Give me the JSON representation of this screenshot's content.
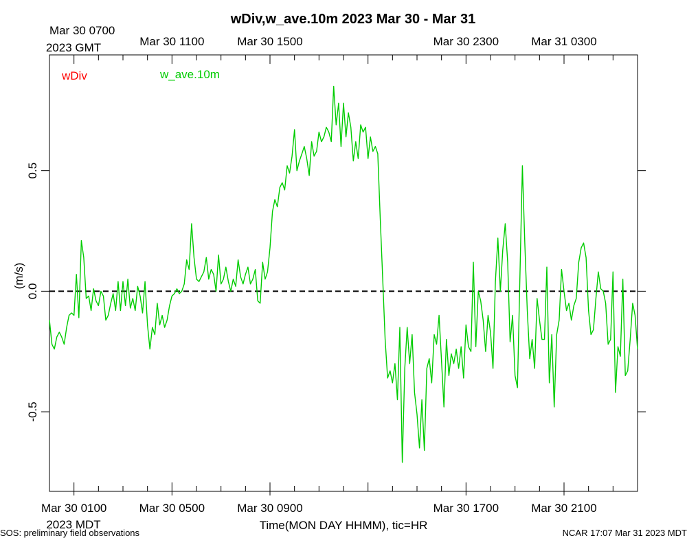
{
  "chart_data": {
    "type": "line",
    "title": "wDiv,w_ave.10m 2023 Mar 30 - Mar 31",
    "xlabel": "Time(MON DAY HHMM), tic=HR",
    "ylabel": "(m/s)",
    "x_range_hours_mdt": [
      0,
      24
    ],
    "ylim": [
      -0.83,
      0.98
    ],
    "y_ticks": [
      -0.5,
      0.0,
      0.5
    ],
    "y_tick_labels": [
      "-0.5",
      "0.0",
      "0.5"
    ],
    "bottom_ticks": [
      {
        "label": "Mar 30 0100",
        "hour": 1
      },
      {
        "label": "Mar 30 0500",
        "hour": 5
      },
      {
        "label": "Mar 30 0900",
        "hour": 9
      },
      {
        "label": "Mar 30 1700",
        "hour": 17
      },
      {
        "label": "Mar 30 2100",
        "hour": 21
      }
    ],
    "top_ticks": [
      {
        "label": "Mar 30 0700",
        "hour": 1
      },
      {
        "label": "Mar 30 1100",
        "hour": 5
      },
      {
        "label": "Mar 30 1500",
        "hour": 9
      },
      {
        "label": "Mar 30 2300",
        "hour": 17
      },
      {
        "label": "Mar 31 0300",
        "hour": 21
      }
    ],
    "bottom_zone": "2023 MDT",
    "top_zone": "2023 GMT",
    "reference_line": {
      "y": 0.0,
      "style": "dashed"
    },
    "legend": [
      {
        "name": "wDiv",
        "color": "#ff0000"
      },
      {
        "name": "w_ave.10m",
        "color": "#00cc00"
      }
    ],
    "series": [
      {
        "name": "w_ave.10m",
        "color": "#00cc00",
        "points": [
          [
            0.0,
            -0.12
          ],
          [
            0.1,
            -0.22
          ],
          [
            0.2,
            -0.24
          ],
          [
            0.3,
            -0.19
          ],
          [
            0.4,
            -0.17
          ],
          [
            0.5,
            -0.19
          ],
          [
            0.6,
            -0.22
          ],
          [
            0.7,
            -0.15
          ],
          [
            0.8,
            -0.1
          ],
          [
            0.9,
            -0.09
          ],
          [
            1.0,
            -0.1
          ],
          [
            1.1,
            0.07
          ],
          [
            1.2,
            -0.11
          ],
          [
            1.3,
            0.21
          ],
          [
            1.4,
            0.14
          ],
          [
            1.5,
            -0.03
          ],
          [
            1.6,
            -0.02
          ],
          [
            1.7,
            -0.08
          ],
          [
            1.8,
            0.01
          ],
          [
            1.9,
            -0.04
          ],
          [
            2.0,
            -0.06
          ],
          [
            2.1,
            0.0
          ],
          [
            2.2,
            -0.02
          ],
          [
            2.3,
            -0.12
          ],
          [
            2.4,
            -0.1
          ],
          [
            2.5,
            -0.05
          ],
          [
            2.6,
            -0.01
          ],
          [
            2.7,
            -0.08
          ],
          [
            2.8,
            0.04
          ],
          [
            2.9,
            -0.08
          ],
          [
            3.0,
            0.04
          ],
          [
            3.1,
            -0.06
          ],
          [
            3.2,
            0.05
          ],
          [
            3.3,
            -0.07
          ],
          [
            3.4,
            -0.03
          ],
          [
            3.5,
            -0.08
          ],
          [
            3.6,
            0.02
          ],
          [
            3.7,
            -0.02
          ],
          [
            3.8,
            -0.09
          ],
          [
            3.9,
            0.04
          ],
          [
            4.0,
            -0.14
          ],
          [
            4.1,
            -0.24
          ],
          [
            4.2,
            -0.15
          ],
          [
            4.3,
            -0.18
          ],
          [
            4.4,
            -0.05
          ],
          [
            4.5,
            -0.14
          ],
          [
            4.6,
            -0.1
          ],
          [
            4.7,
            -0.15
          ],
          [
            4.8,
            -0.12
          ],
          [
            4.9,
            -0.06
          ],
          [
            5.0,
            -0.02
          ],
          [
            5.1,
            -0.01
          ],
          [
            5.2,
            0.01
          ],
          [
            5.3,
            -0.01
          ],
          [
            5.4,
            0.0
          ],
          [
            5.5,
            0.03
          ],
          [
            5.6,
            0.13
          ],
          [
            5.7,
            0.09
          ],
          [
            5.8,
            0.28
          ],
          [
            5.9,
            0.14
          ],
          [
            6.0,
            0.05
          ],
          [
            6.1,
            0.04
          ],
          [
            6.2,
            0.06
          ],
          [
            6.3,
            0.08
          ],
          [
            6.4,
            0.14
          ],
          [
            6.5,
            0.05
          ],
          [
            6.6,
            0.09
          ],
          [
            6.7,
            0.07
          ],
          [
            6.8,
            0.0
          ],
          [
            6.9,
            0.15
          ],
          [
            7.0,
            0.03
          ],
          [
            7.1,
            0.05
          ],
          [
            7.2,
            0.1
          ],
          [
            7.3,
            0.04
          ],
          [
            7.4,
            0.0
          ],
          [
            7.5,
            0.05
          ],
          [
            7.6,
            0.02
          ],
          [
            7.7,
            0.13
          ],
          [
            7.8,
            0.06
          ],
          [
            7.9,
            0.03
          ],
          [
            8.0,
            0.07
          ],
          [
            8.1,
            0.1
          ],
          [
            8.2,
            0.03
          ],
          [
            8.3,
            0.05
          ],
          [
            8.4,
            0.09
          ],
          [
            8.5,
            -0.04
          ],
          [
            8.6,
            -0.05
          ],
          [
            8.7,
            0.12
          ],
          [
            8.8,
            0.05
          ],
          [
            8.9,
            0.08
          ],
          [
            9.0,
            0.18
          ],
          [
            9.1,
            0.33
          ],
          [
            9.2,
            0.38
          ],
          [
            9.3,
            0.35
          ],
          [
            9.4,
            0.43
          ],
          [
            9.5,
            0.45
          ],
          [
            9.6,
            0.42
          ],
          [
            9.7,
            0.52
          ],
          [
            9.8,
            0.49
          ],
          [
            9.9,
            0.56
          ],
          [
            10.0,
            0.67
          ],
          [
            10.1,
            0.5
          ],
          [
            10.2,
            0.54
          ],
          [
            10.3,
            0.57
          ],
          [
            10.4,
            0.6
          ],
          [
            10.5,
            0.55
          ],
          [
            10.6,
            0.48
          ],
          [
            10.7,
            0.62
          ],
          [
            10.8,
            0.56
          ],
          [
            10.9,
            0.58
          ],
          [
            11.0,
            0.66
          ],
          [
            11.1,
            0.62
          ],
          [
            11.2,
            0.64
          ],
          [
            11.3,
            0.68
          ],
          [
            11.4,
            0.66
          ],
          [
            11.5,
            0.62
          ],
          [
            11.6,
            0.85
          ],
          [
            11.7,
            0.69
          ],
          [
            11.8,
            0.78
          ],
          [
            11.9,
            0.6
          ],
          [
            12.0,
            0.78
          ],
          [
            12.1,
            0.64
          ],
          [
            12.2,
            0.74
          ],
          [
            12.3,
            0.68
          ],
          [
            12.4,
            0.54
          ],
          [
            12.5,
            0.62
          ],
          [
            12.6,
            0.55
          ],
          [
            12.7,
            0.69
          ],
          [
            12.8,
            0.66
          ],
          [
            12.9,
            0.68
          ],
          [
            13.0,
            0.55
          ],
          [
            13.1,
            0.64
          ],
          [
            13.2,
            0.58
          ],
          [
            13.3,
            0.6
          ],
          [
            13.4,
            0.57
          ],
          [
            13.5,
            0.3
          ],
          [
            13.6,
            0.05
          ],
          [
            13.7,
            -0.2
          ],
          [
            13.8,
            -0.36
          ],
          [
            13.9,
            -0.33
          ],
          [
            14.0,
            -0.38
          ],
          [
            14.1,
            -0.3
          ],
          [
            14.2,
            -0.45
          ],
          [
            14.3,
            -0.15
          ],
          [
            14.4,
            -0.71
          ],
          [
            14.5,
            -0.32
          ],
          [
            14.6,
            -0.15
          ],
          [
            14.7,
            -0.3
          ],
          [
            14.8,
            -0.18
          ],
          [
            14.9,
            -0.42
          ],
          [
            15.0,
            -0.51
          ],
          [
            15.1,
            -0.65
          ],
          [
            15.2,
            -0.45
          ],
          [
            15.3,
            -0.66
          ],
          [
            15.4,
            -0.32
          ],
          [
            15.5,
            -0.28
          ],
          [
            15.6,
            -0.38
          ],
          [
            15.7,
            -0.18
          ],
          [
            15.8,
            -0.22
          ],
          [
            15.9,
            -0.1
          ],
          [
            16.0,
            -0.29
          ],
          [
            16.1,
            -0.48
          ],
          [
            16.2,
            -0.2
          ],
          [
            16.3,
            -0.35
          ],
          [
            16.4,
            -0.26
          ],
          [
            16.5,
            -0.3
          ],
          [
            16.6,
            -0.24
          ],
          [
            16.7,
            -0.32
          ],
          [
            16.8,
            -0.23
          ],
          [
            16.9,
            -0.36
          ],
          [
            17.0,
            -0.14
          ],
          [
            17.1,
            -0.23
          ],
          [
            17.2,
            -0.25
          ],
          [
            17.3,
            0.12
          ],
          [
            17.4,
            -0.23
          ],
          [
            17.5,
            0.0
          ],
          [
            17.6,
            -0.04
          ],
          [
            17.7,
            -0.12
          ],
          [
            17.8,
            -0.25
          ],
          [
            17.9,
            -0.1
          ],
          [
            18.0,
            -0.17
          ],
          [
            18.1,
            -0.32
          ],
          [
            18.2,
            0.04
          ],
          [
            18.3,
            0.22
          ],
          [
            18.4,
            0.0
          ],
          [
            18.5,
            0.17
          ],
          [
            18.6,
            0.28
          ],
          [
            18.7,
            0.12
          ],
          [
            18.8,
            -0.21
          ],
          [
            18.9,
            -0.1
          ],
          [
            19.0,
            -0.35
          ],
          [
            19.1,
            -0.4
          ],
          [
            19.2,
            0.06
          ],
          [
            19.3,
            0.52
          ],
          [
            19.4,
            0.2
          ],
          [
            19.5,
            -0.08
          ],
          [
            19.6,
            -0.28
          ],
          [
            19.7,
            -0.2
          ],
          [
            19.8,
            -0.32
          ],
          [
            19.9,
            -0.03
          ],
          [
            20.0,
            -0.12
          ],
          [
            20.1,
            -0.2
          ],
          [
            20.2,
            -0.2
          ],
          [
            20.3,
            0.1
          ],
          [
            20.4,
            -0.38
          ],
          [
            20.5,
            -0.18
          ],
          [
            20.6,
            -0.48
          ],
          [
            20.7,
            -0.18
          ],
          [
            20.8,
            -0.12
          ],
          [
            20.9,
            0.09
          ],
          [
            21.0,
            0.0
          ],
          [
            21.1,
            -0.08
          ],
          [
            21.2,
            -0.05
          ],
          [
            21.3,
            -0.12
          ],
          [
            21.4,
            -0.06
          ],
          [
            21.5,
            -0.03
          ],
          [
            21.6,
            0.12
          ],
          [
            21.7,
            0.18
          ],
          [
            21.8,
            0.2
          ],
          [
            21.9,
            0.14
          ],
          [
            22.0,
            -0.08
          ],
          [
            22.1,
            -0.18
          ],
          [
            22.2,
            -0.16
          ],
          [
            22.3,
            -0.03
          ],
          [
            22.4,
            0.08
          ],
          [
            22.5,
            0.01
          ],
          [
            22.6,
            0.0
          ],
          [
            22.7,
            -0.05
          ],
          [
            22.8,
            -0.22
          ],
          [
            22.9,
            -0.2
          ],
          [
            23.0,
            0.08
          ],
          [
            23.1,
            -0.42
          ],
          [
            23.2,
            -0.23
          ],
          [
            23.3,
            -0.27
          ],
          [
            23.4,
            0.05
          ],
          [
            23.5,
            -0.35
          ],
          [
            23.6,
            -0.33
          ],
          [
            23.7,
            -0.2
          ],
          [
            23.8,
            -0.05
          ],
          [
            23.9,
            -0.1
          ],
          [
            24.0,
            -0.24
          ]
        ]
      }
    ]
  },
  "footer": {
    "left": "SOS: preliminary field observations",
    "right": "NCAR 17:07 Mar 31 2023 MDT"
  }
}
